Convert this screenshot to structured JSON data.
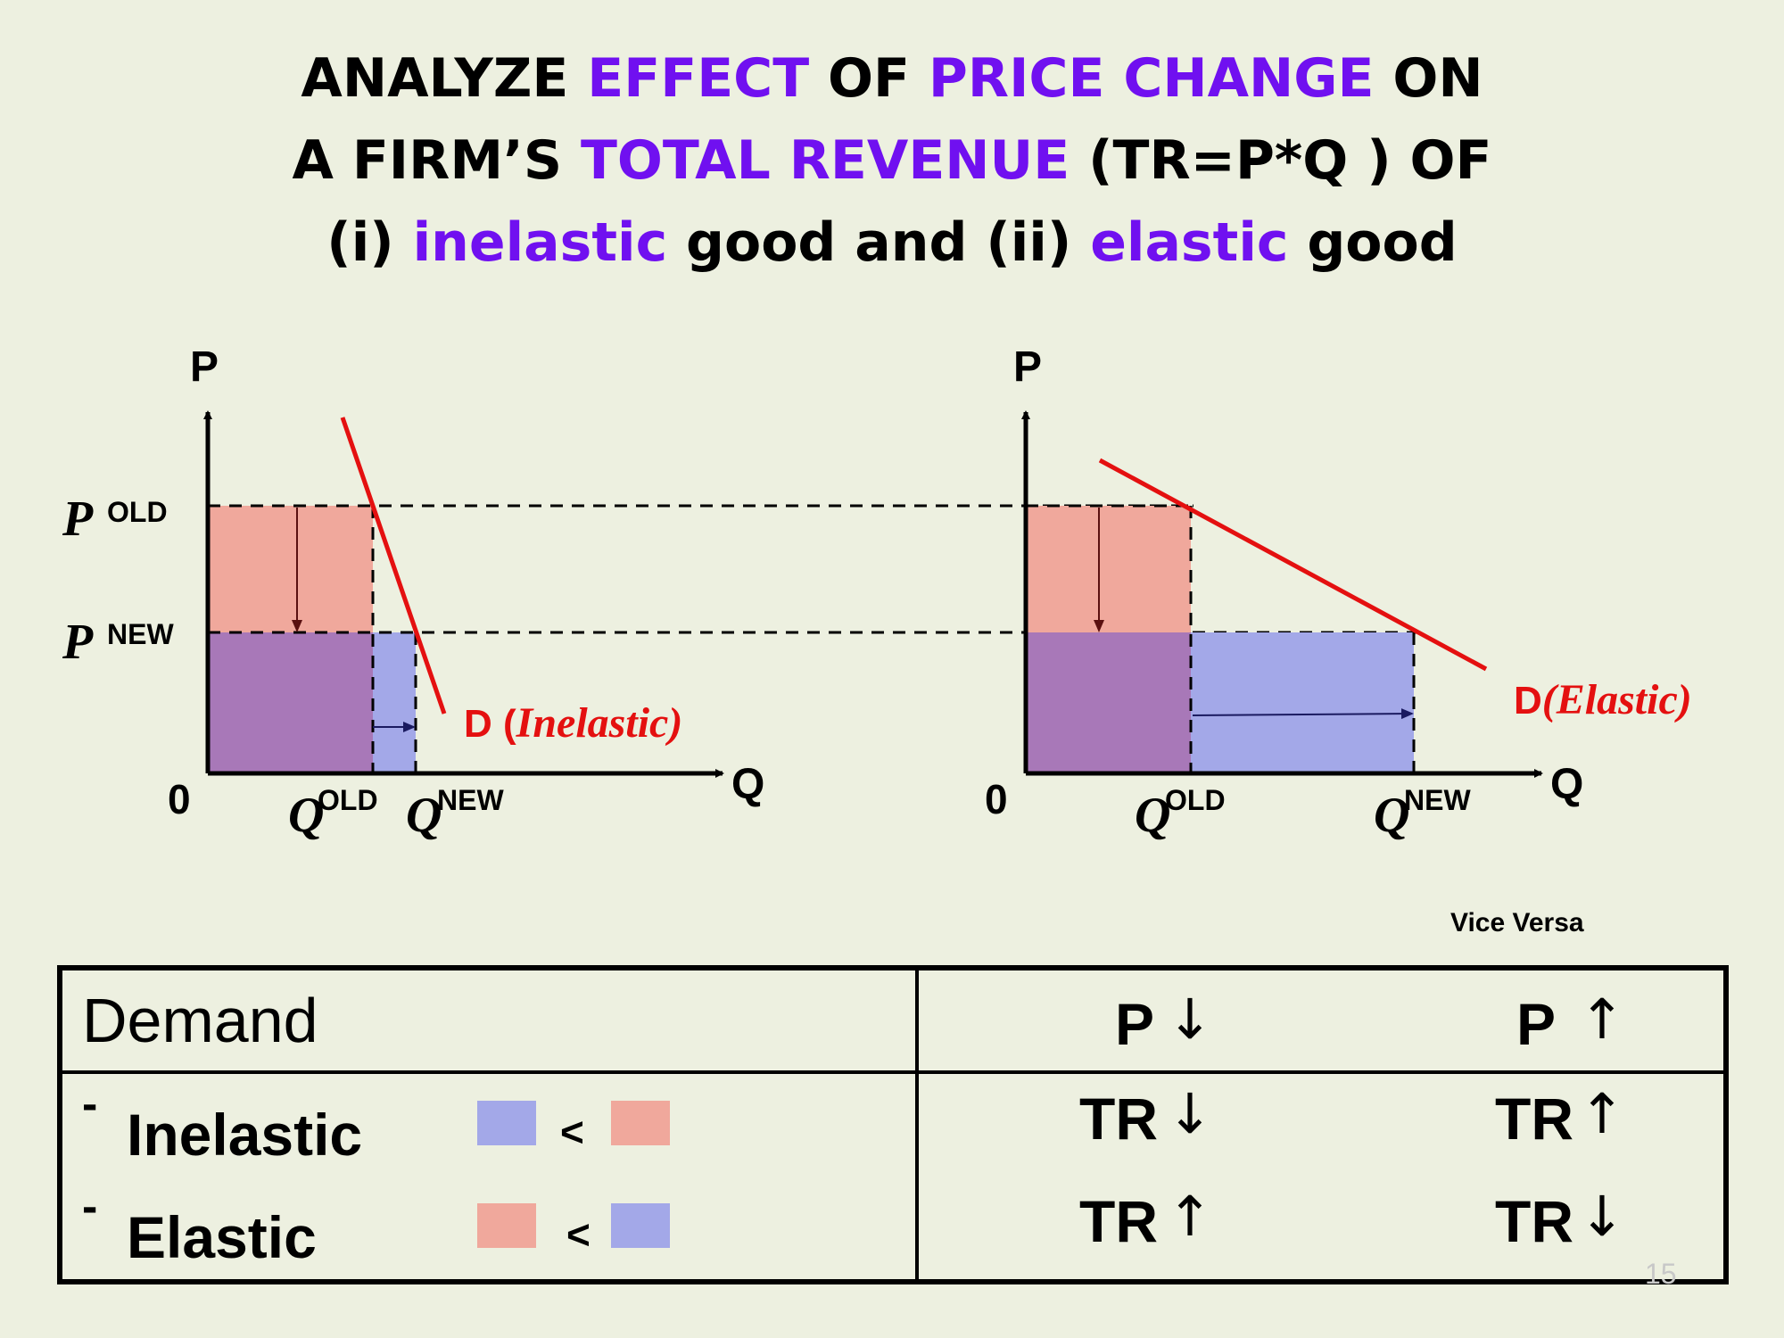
{
  "title": {
    "line1": {
      "t1": "ANALYZE ",
      "h1": "EFFECT",
      "t2": " OF ",
      "h2": "PRICE CHANGE",
      "t3": " ON"
    },
    "line2": {
      "t1": "A FIRM’S ",
      "h1": "TOTAL REVENUE",
      "t2": " (TR=P*Q ) OF"
    },
    "line3": {
      "t1": "(i) ",
      "h1": "inelastic",
      "t2": " good and (ii) ",
      "h2": "elastic",
      "t3": " good"
    }
  },
  "colors": {
    "highlight": "#7010f0",
    "demand_line": "#e41010",
    "old_revenue_fill": "#f0a89c",
    "new_revenue_fill": "#a3a8e8",
    "overlap_fill": "#a878b8"
  },
  "left_graph": {
    "y_axis_label": "P",
    "x_axis_label": "Q",
    "origin_label": "0",
    "p_symbol": "P",
    "p_old_label": "OLD",
    "p_new_label": "NEW",
    "q_symbol": "Q",
    "q_old_label": "OLD",
    "q_new_label": "NEW",
    "demand_label_prefix": "D (",
    "demand_label_italic": "Inelastic)"
  },
  "right_graph": {
    "y_axis_label": "P",
    "x_axis_label": "Q",
    "origin_label": "0",
    "q_symbol": "Q",
    "q_old_label": "OLD",
    "q_new_label": "NEW",
    "demand_label_prefix": "D",
    "demand_label_italic": "(Elastic)"
  },
  "vice_versa": "Vice Versa",
  "table": {
    "header": {
      "demand": "Demand",
      "p_down": "P",
      "p_down_arrow": "↓",
      "p_up": "P",
      "p_up_arrow": "↑"
    },
    "rows": [
      {
        "dash": "-",
        "label": "Inelastic",
        "compare": "<",
        "col1_text": "TR",
        "col1_arrow": "↓",
        "col2_text": "TR",
        "col2_arrow": "↑"
      },
      {
        "dash": "-",
        "label": "Elastic",
        "compare": "<",
        "col1_text": "TR",
        "col1_arrow": "↑",
        "col2_text": "TR",
        "col2_arrow": "↓"
      }
    ]
  },
  "page_number": "15"
}
